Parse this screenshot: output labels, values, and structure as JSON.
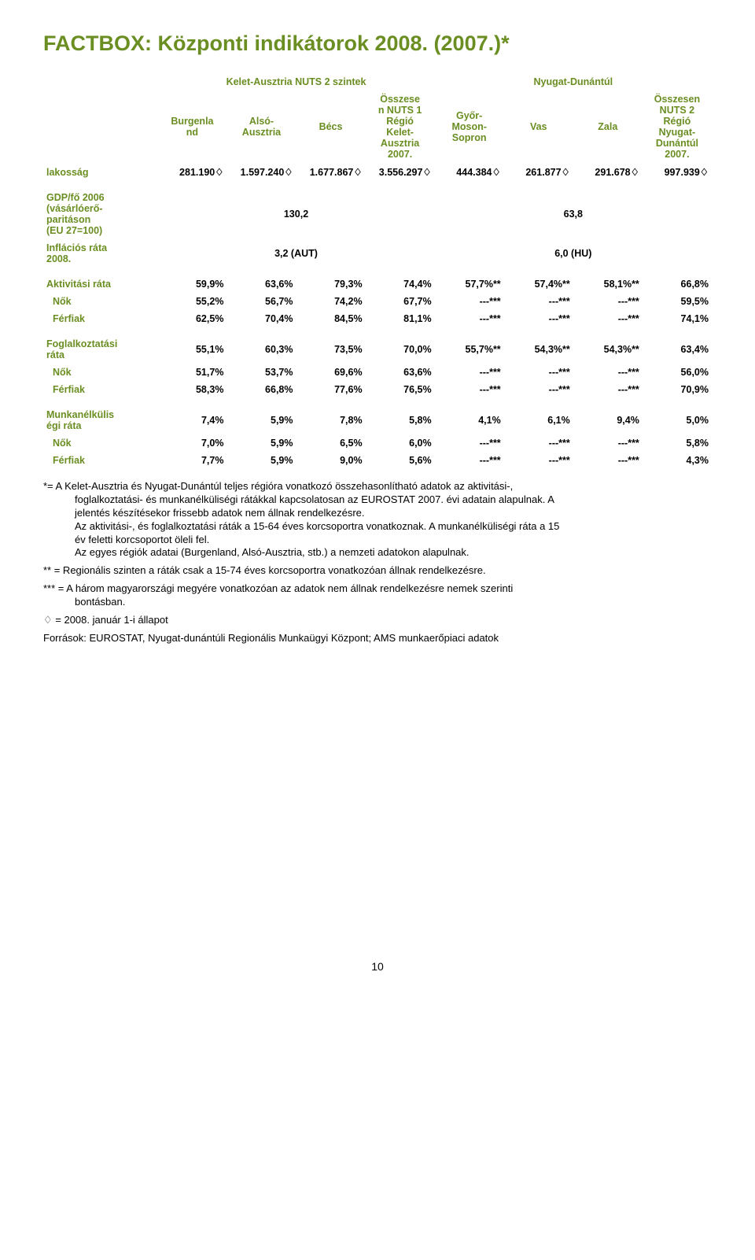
{
  "colors": {
    "heading": "#6b8e23",
    "accent_text": "#6b8e23",
    "body_text": "#000000"
  },
  "title": "FACTBOX: Központi indikátorok 2008. (2007.)*",
  "region_headers": {
    "left_region": "Kelet-Ausztria NUTS 2 szintek",
    "right_region": "Nyugat-Dunántúl"
  },
  "columns": {
    "c1": "Burgenla\nnd",
    "c2": "Alsó-\nAusztria",
    "c3": "Bécs",
    "c4": "Összese\nn NUTS 1\nRégió\nKelet-\nAusztria\n2007.",
    "c5": "Győr-\nMoson-\nSopron",
    "c6": "Vas",
    "c7": "Zala",
    "c8": "Összesen\nNUTS 2\nRégió\nNyugat-\nDunántúl\n2007."
  },
  "rows": {
    "lakossag": {
      "label": "lakosság",
      "v": [
        "281.190♢",
        "1.597.240♢",
        "1.677.867♢",
        "3.556.297♢",
        "444.384♢",
        "261.877♢",
        "291.678♢",
        "997.939♢"
      ]
    },
    "gdp": {
      "label": "GDP/fő 2006\n(vásárlóerő-\nparitáson\n(EU 27=100)",
      "left_span": "130,2",
      "right_span": "63,8"
    },
    "inflacio": {
      "label": "Inflációs ráta\n2008.",
      "left_span": "3,2 (AUT)",
      "right_span": "6,0 (HU)"
    },
    "aktivitasi": {
      "label": "Aktivitási ráta",
      "v": [
        "59,9%",
        "63,6%",
        "79,3%",
        "74,4%",
        "57,7%**",
        "57,4%**",
        "58,1%**",
        "66,8%"
      ]
    },
    "akt_nok": {
      "label": "Nők",
      "v": [
        "55,2%",
        "56,7%",
        "74,2%",
        "67,7%",
        "---***",
        "---***",
        "---***",
        "59,5%"
      ]
    },
    "akt_ferfiak": {
      "label": "Férfiak",
      "v": [
        "62,5%",
        "70,4%",
        "84,5%",
        "81,1%",
        "---***",
        "---***",
        "---***",
        "74,1%"
      ]
    },
    "foglalk": {
      "label": "Foglalkoztatási\nráta",
      "v": [
        "55,1%",
        "60,3%",
        "73,5%",
        "70,0%",
        "55,7%**",
        "54,3%**",
        "54,3%**",
        "63,4%"
      ]
    },
    "fog_nok": {
      "label": "Nők",
      "v": [
        "51,7%",
        "53,7%",
        "69,6%",
        "63,6%",
        "---***",
        "---***",
        "---***",
        "56,0%"
      ]
    },
    "fog_ferfiak": {
      "label": "Férfiak",
      "v": [
        "58,3%",
        "66,8%",
        "77,6%",
        "76,5%",
        "---***",
        "---***",
        "---***",
        "70,9%"
      ]
    },
    "munkanel": {
      "label": "Munkanélkülis\négi ráta",
      "v": [
        "7,4%",
        "5,9%",
        "7,8%",
        "5,8%",
        "4,1%",
        "6,1%",
        "9,4%",
        "5,0%"
      ]
    },
    "mun_nok": {
      "label": "Nők",
      "v": [
        "7,0%",
        "5,9%",
        "6,5%",
        "6,0%",
        "---***",
        "---***",
        "---***",
        "5,8%"
      ]
    },
    "mun_ferfiak": {
      "label": "Férfiak",
      "v": [
        "7,7%",
        "5,9%",
        "9,0%",
        "5,6%",
        "---***",
        "---***",
        "---***",
        "4,3%"
      ]
    }
  },
  "footnotes": {
    "f1a": "*= A Kelet-Ausztria és Nyugat-Dunántúl teljes régióra vonatkozó összehasonlítható adatok az aktivitási-,",
    "f1b": "foglalkoztatási- és munkanélküliségi rátákkal kapcsolatosan az EUROSTAT 2007. évi adatain alapulnak. A",
    "f1c": "jelentés készítésekor frissebb adatok nem állnak rendelkezésre.",
    "f1d": "Az aktivitási-, és foglalkoztatási ráták a 15-64 éves korcsoportra vonatkoznak. A munkanélküliségi ráta a 15",
    "f1e": "év feletti korcsoportot öleli fel.",
    "f1f": "Az egyes régiók adatai (Burgenland, Alsó-Ausztria, stb.) a nemzeti adatokon alapulnak.",
    "f2": "** = Regionális szinten a ráták csak a 15-74 éves korcsoportra vonatkozóan állnak rendelkezésre.",
    "f3a": "*** = A három magyarországi megyére vonatkozóan az adatok nem állnak rendelkezésre nemek szerinti",
    "f3b": "bontásban.",
    "fdiamond": "♢ = 2008. január 1-i állapot",
    "fsrc": "Források: EUROSTAT, Nyugat-dunántúli Regionális Munkaügyi Központ; AMS munkaerőpiaci adatok"
  },
  "page_number": "10"
}
